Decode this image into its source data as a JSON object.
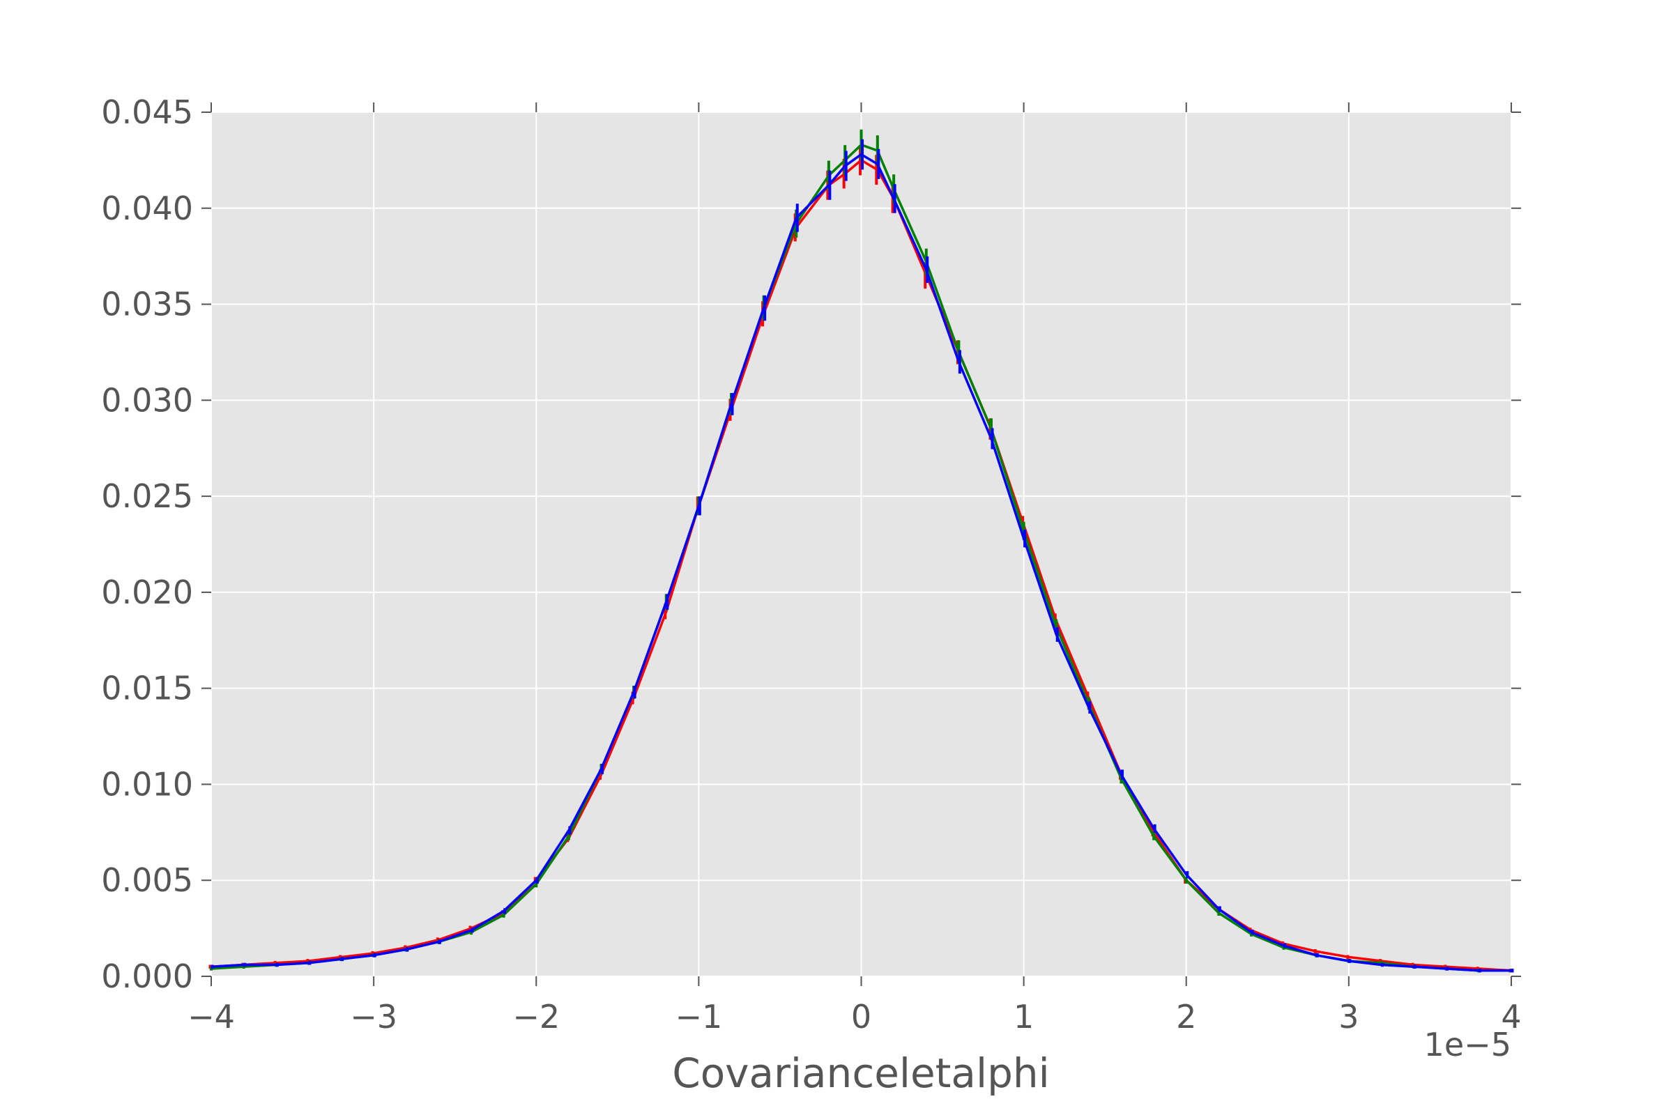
{
  "chart_data": {
    "type": "line",
    "xlabel": "Covarianceletalphi",
    "ylabel": "",
    "x_offset_label": "1e−5",
    "xlim": [
      -4,
      4
    ],
    "ylim": [
      0,
      0.045
    ],
    "x_ticks": [
      -4,
      -3,
      -2,
      -1,
      0,
      1,
      2,
      3,
      4
    ],
    "x_tick_labels": [
      "−4",
      "−3",
      "−2",
      "−1",
      "0",
      "1",
      "2",
      "3",
      "4"
    ],
    "y_ticks": [
      0,
      0.005,
      0.01,
      0.015,
      0.02,
      0.025,
      0.03,
      0.035,
      0.04,
      0.045
    ],
    "y_tick_labels": [
      "0.000",
      "0.005",
      "0.010",
      "0.015",
      "0.020",
      "0.025",
      "0.030",
      "0.035",
      "0.040",
      "0.045"
    ],
    "grid": true,
    "x": [
      -4.0,
      -3.8,
      -3.6,
      -3.4,
      -3.2,
      -3.0,
      -2.8,
      -2.6,
      -2.4,
      -2.2,
      -2.0,
      -1.8,
      -1.6,
      -1.4,
      -1.2,
      -1.0,
      -0.8,
      -0.6,
      -0.4,
      -0.2,
      -0.1,
      0.0,
      0.1,
      0.2,
      0.4,
      0.6,
      0.8,
      1.0,
      1.2,
      1.4,
      1.6,
      1.8,
      2.0,
      2.2,
      2.4,
      2.6,
      2.8,
      3.0,
      3.2,
      3.4,
      3.6,
      3.8,
      4.0
    ],
    "series": [
      {
        "color": "#ff0000",
        "values": [
          0.0005,
          0.0006,
          0.0007,
          0.0008,
          0.001,
          0.0012,
          0.0015,
          0.0019,
          0.0025,
          0.0033,
          0.005,
          0.0072,
          0.0105,
          0.0145,
          0.019,
          0.0245,
          0.0295,
          0.0345,
          0.039,
          0.0412,
          0.0418,
          0.0425,
          0.042,
          0.0405,
          0.0365,
          0.0325,
          0.0285,
          0.0235,
          0.0185,
          0.0145,
          0.0105,
          0.0075,
          0.005,
          0.0035,
          0.0024,
          0.0017,
          0.0013,
          0.001,
          0.0008,
          0.0006,
          0.0005,
          0.0004,
          0.0003
        ]
      },
      {
        "color": "#008000",
        "values": [
          0.0004,
          0.0005,
          0.0006,
          0.0007,
          0.0009,
          0.0011,
          0.0014,
          0.0018,
          0.0023,
          0.0032,
          0.0048,
          0.0073,
          0.0108,
          0.0148,
          0.0195,
          0.0245,
          0.0298,
          0.0348,
          0.0392,
          0.0417,
          0.0425,
          0.0433,
          0.043,
          0.041,
          0.0372,
          0.0325,
          0.0285,
          0.0232,
          0.0182,
          0.0142,
          0.0103,
          0.0073,
          0.005,
          0.0033,
          0.0022,
          0.0015,
          0.0011,
          0.0008,
          0.0007,
          0.0005,
          0.0004,
          0.0003,
          0.0003
        ]
      },
      {
        "color": "#0000ff",
        "values": [
          0.0005,
          0.0006,
          0.0006,
          0.0007,
          0.0009,
          0.0011,
          0.0014,
          0.0018,
          0.0024,
          0.0034,
          0.005,
          0.0076,
          0.0108,
          0.0148,
          0.0195,
          0.0245,
          0.0298,
          0.0348,
          0.0395,
          0.0412,
          0.0422,
          0.0428,
          0.0423,
          0.0405,
          0.0368,
          0.032,
          0.028,
          0.0228,
          0.0178,
          0.014,
          0.0105,
          0.0077,
          0.0053,
          0.0035,
          0.0023,
          0.0016,
          0.0011,
          0.0008,
          0.0006,
          0.0005,
          0.0004,
          0.0003,
          0.0003
        ]
      }
    ]
  }
}
